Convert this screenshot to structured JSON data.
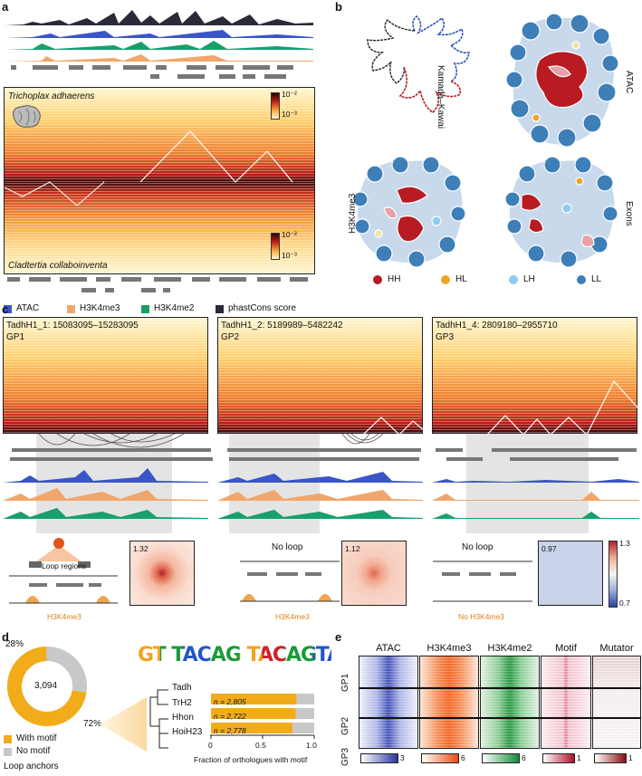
{
  "panel_a": {
    "label": "a",
    "species_top": "Trichoplax adhaerens",
    "species_bottom": "Cladtertia collaboinventa",
    "cbar_top_max": "10⁻²",
    "cbar_top_min": "10⁻³",
    "cbar_bottom_max": "10⁻²",
    "cbar_bottom_min": "10⁻³",
    "legend": [
      {
        "label": "ATAC",
        "color": "#3a55c8"
      },
      {
        "label": "H3K4me3",
        "color": "#f2a66a"
      },
      {
        "label": "H3K4me2",
        "color": "#17a06a"
      },
      {
        "label": "phastCons score",
        "color": "#2a2a3a"
      }
    ]
  },
  "panel_b": {
    "label": "b",
    "kamada_label": "Kamada–Kawai",
    "atac_label": "ATAC",
    "h3k4me3_label": "H3K4me3",
    "exons_label": "Exons",
    "legend": [
      {
        "label": "HH",
        "color": "#b81c22"
      },
      {
        "label": "HL",
        "color": "#f2a320"
      },
      {
        "label": "LH",
        "color": "#8ecbf0"
      },
      {
        "label": "LL",
        "color": "#3e7fb8"
      }
    ]
  },
  "panel_c": {
    "label": "c",
    "maps": [
      {
        "title": "TadhH1_1: 15083095–15283095",
        "group": "GP1"
      },
      {
        "title": "TadhH1_2: 5189989–5482242",
        "group": "GP2"
      },
      {
        "title": "TadhH1_4: 2809180–2955710",
        "group": "GP3"
      }
    ],
    "schematic": {
      "loop_regions": "Loop regions",
      "no_loop_2": "No loop",
      "no_loop_3": "No loop",
      "h3k4me3_1": "H3K4me3",
      "h3k4me3_2": "H3K4me3",
      "no_h3k4me3": "No H3K4me3"
    },
    "apa_values": [
      "1.32",
      "1.12",
      "0.97"
    ],
    "cbar_max": "1.3",
    "cbar_min": "0.7"
  },
  "panel_d": {
    "label": "d",
    "donut_center": "3,094",
    "pct_no_motif": "28%",
    "pct_motif": "72%",
    "legend_with": "With motif",
    "legend_without": "No motif",
    "legend_caption": "Loop anchors",
    "species": [
      "Tadh",
      "TrH2",
      "Hhon",
      "HoiH23"
    ],
    "motif_letters": "GT TACAG TACAGTAC T GTA",
    "bars": [
      {
        "label": "n = 2,805",
        "fraction": 0.83
      },
      {
        "label": "n = 2,722",
        "fraction": 0.82
      },
      {
        "label": "n = 2,778",
        "fraction": 0.79
      }
    ],
    "axis_ticks": [
      "0",
      "0.5",
      "1.0"
    ],
    "xlabel": "Fraction of orthologues with motif",
    "colors": {
      "motif": "#f2ac1a",
      "no_motif": "#c8c8c8"
    }
  },
  "panel_e": {
    "label": "e",
    "columns": [
      "ATAC",
      "H3K4me3",
      "H3K4me2",
      "Motif",
      "Mutator"
    ],
    "rows": [
      "GP1",
      "GP2",
      "GP3"
    ],
    "cbar_labels": [
      "3",
      "6",
      "6",
      "1",
      "1"
    ]
  }
}
